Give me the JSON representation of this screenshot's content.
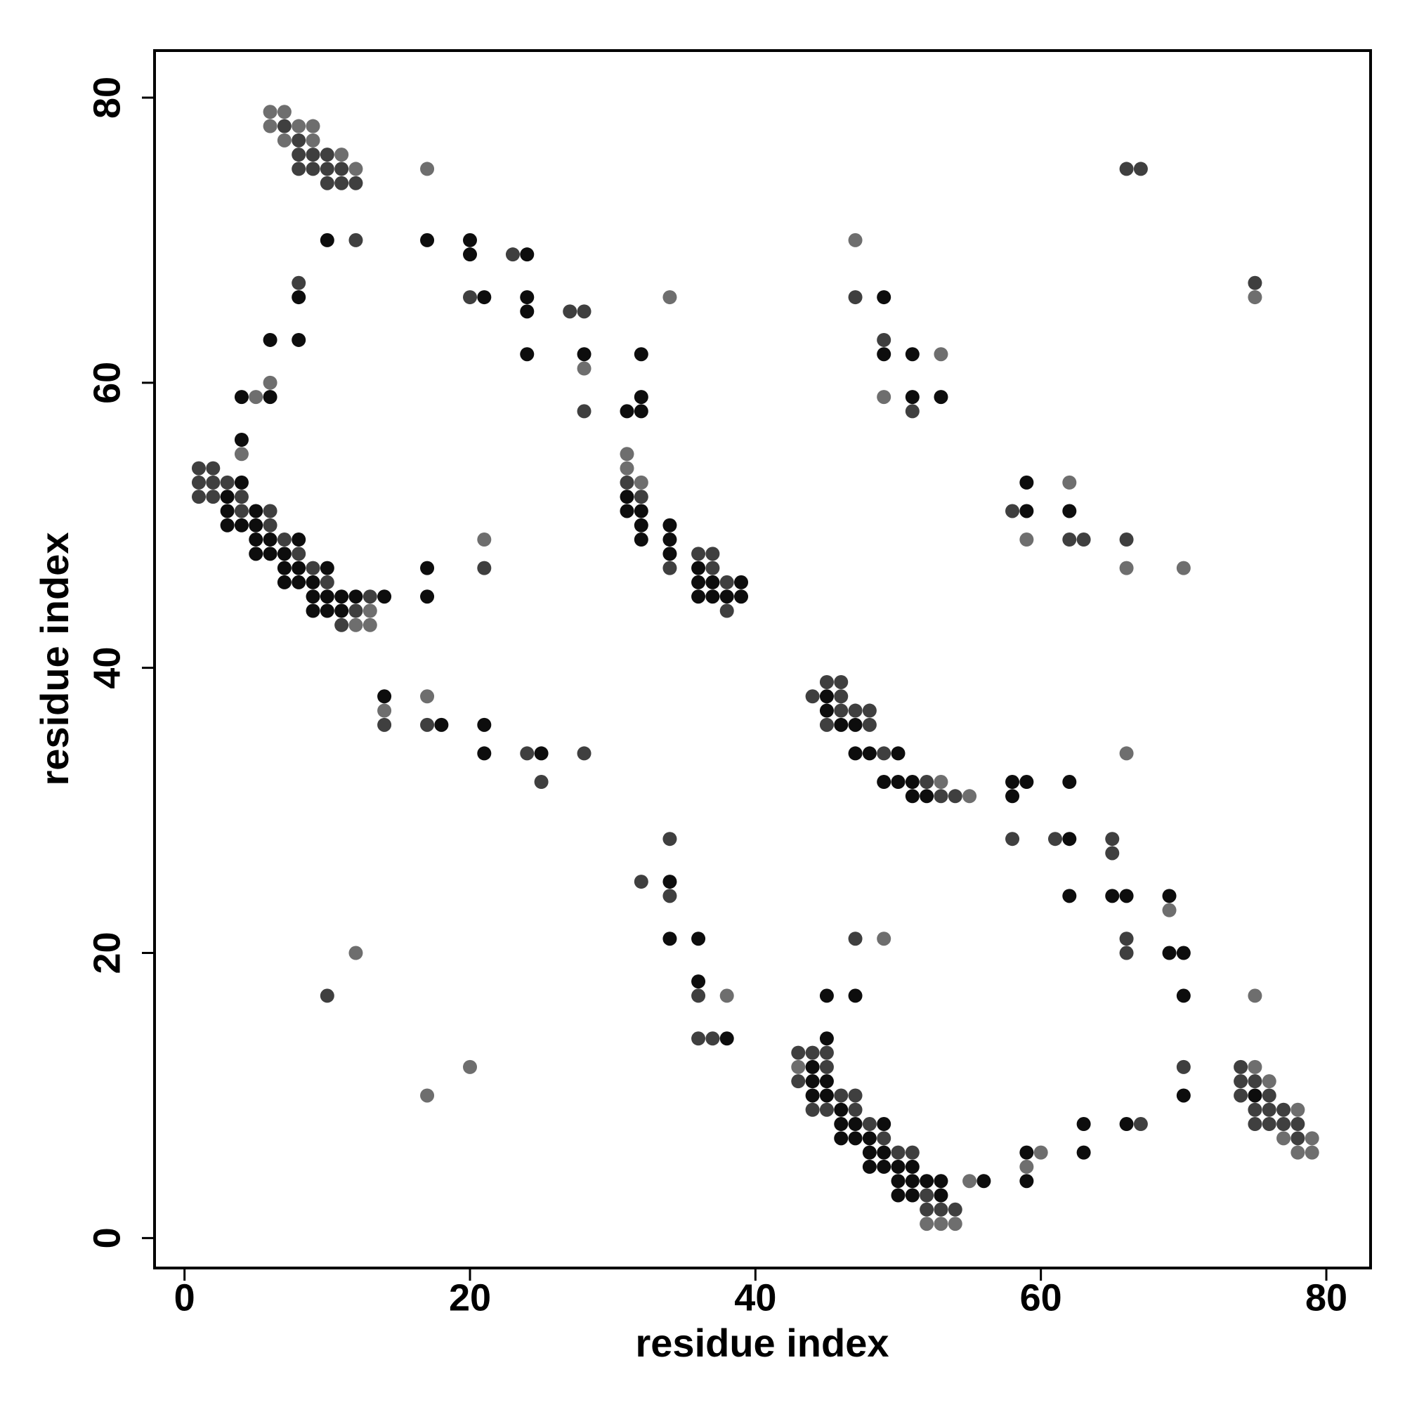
{
  "chart_data": {
    "type": "scatter",
    "x_label": "residue index",
    "y_label": "residue index",
    "xlim": [
      -2.1,
      83.1
    ],
    "ylim": [
      -2.1,
      83.3
    ],
    "xticks": [
      0,
      20,
      40,
      60,
      80
    ],
    "yticks": [
      0,
      20,
      40,
      60,
      80
    ],
    "grid": false,
    "series": [
      {
        "color": "#0d0d0d",
        "x": [
          10,
          17,
          20,
          20,
          24,
          8,
          21,
          24,
          49,
          24,
          6,
          8,
          24,
          28,
          32,
          49,
          51,
          4,
          6,
          32,
          51,
          53,
          31,
          32,
          4,
          4,
          59,
          3,
          31,
          3,
          5,
          31,
          32,
          59,
          62,
          3,
          4,
          5,
          32,
          34,
          5,
          6,
          8,
          32,
          34,
          5,
          6,
          7,
          34,
          7,
          8,
          10,
          17,
          36,
          7,
          8,
          9,
          36,
          37,
          39,
          9,
          10,
          11,
          12,
          14,
          17,
          36,
          37,
          38,
          39,
          9,
          10,
          11,
          14,
          45,
          45,
          18,
          21,
          46,
          47,
          21,
          25,
          47,
          48,
          50,
          49,
          50,
          51,
          58,
          59,
          62,
          51,
          52,
          58,
          62,
          34,
          62,
          65,
          66,
          69,
          34,
          36,
          69,
          70,
          36,
          45,
          47,
          70,
          38,
          45,
          44,
          44,
          45,
          44,
          45,
          70,
          75,
          46,
          46,
          47,
          49,
          63,
          66,
          46,
          47,
          48,
          48,
          49,
          59,
          63,
          48,
          49,
          50,
          51,
          50,
          51,
          52,
          53,
          56,
          59,
          50,
          51,
          53
        ],
        "values": [
          70,
          70,
          70,
          69,
          69,
          66,
          66,
          66,
          66,
          65,
          63,
          63,
          62,
          62,
          62,
          62,
          62,
          59,
          59,
          59,
          59,
          59,
          58,
          58,
          56,
          53,
          53,
          52,
          52,
          51,
          51,
          51,
          51,
          51,
          51,
          50,
          50,
          50,
          50,
          50,
          49,
          49,
          49,
          49,
          49,
          48,
          48,
          48,
          48,
          47,
          47,
          47,
          47,
          47,
          46,
          46,
          46,
          46,
          46,
          46,
          45,
          45,
          45,
          45,
          45,
          45,
          45,
          45,
          45,
          45,
          44,
          44,
          44,
          38,
          38,
          37,
          36,
          36,
          36,
          36,
          34,
          34,
          34,
          34,
          34,
          32,
          32,
          32,
          32,
          32,
          32,
          31,
          31,
          31,
          28,
          25,
          24,
          24,
          24,
          24,
          21,
          21,
          20,
          20,
          18,
          17,
          17,
          17,
          14,
          14,
          12,
          11,
          11,
          10,
          10,
          10,
          10,
          9,
          8,
          8,
          8,
          8,
          8,
          7,
          7,
          7,
          6,
          6,
          6,
          6,
          5,
          5,
          5,
          5,
          4,
          4,
          4,
          4,
          4,
          4,
          3,
          3,
          3
        ]
      },
      {
        "color": "#3f3f3f",
        "x": [
          7,
          8,
          8,
          9,
          10,
          8,
          9,
          10,
          11,
          66,
          67,
          10,
          11,
          12,
          12,
          23,
          8,
          75,
          20,
          47,
          27,
          28,
          49,
          28,
          51,
          1,
          2,
          1,
          2,
          3,
          31,
          1,
          2,
          4,
          32,
          4,
          6,
          58,
          6,
          7,
          62,
          63,
          66,
          8,
          36,
          37,
          9,
          21,
          34,
          37,
          10,
          38,
          13,
          12,
          38,
          11,
          45,
          46,
          44,
          46,
          46,
          47,
          48,
          14,
          17,
          45,
          48,
          24,
          28,
          49,
          25,
          52,
          53,
          54,
          34,
          58,
          61,
          65,
          65,
          32,
          34,
          47,
          66,
          66,
          10,
          36,
          36,
          37,
          43,
          44,
          45,
          45,
          70,
          74,
          43,
          74,
          75,
          46,
          47,
          74,
          76,
          44,
          45,
          47,
          75,
          76,
          77,
          48,
          67,
          75,
          76,
          77,
          78,
          49,
          78,
          50,
          51,
          52,
          52,
          53,
          54
        ],
        "values": [
          78,
          77,
          76,
          76,
          76,
          75,
          75,
          75,
          75,
          75,
          75,
          74,
          74,
          74,
          70,
          69,
          67,
          67,
          66,
          66,
          65,
          65,
          63,
          58,
          58,
          54,
          54,
          53,
          53,
          53,
          53,
          52,
          52,
          52,
          52,
          51,
          51,
          51,
          50,
          49,
          49,
          49,
          49,
          48,
          48,
          48,
          47,
          47,
          47,
          47,
          46,
          46,
          45,
          44,
          44,
          43,
          39,
          39,
          38,
          38,
          37,
          37,
          37,
          36,
          36,
          36,
          36,
          34,
          34,
          34,
          32,
          32,
          31,
          31,
          28,
          28,
          28,
          28,
          27,
          25,
          24,
          21,
          21,
          20,
          17,
          17,
          14,
          14,
          13,
          13,
          13,
          12,
          12,
          12,
          11,
          11,
          11,
          10,
          10,
          10,
          10,
          9,
          9,
          9,
          9,
          9,
          9,
          8,
          8,
          8,
          8,
          8,
          8,
          7,
          7,
          6,
          6,
          3,
          2,
          2,
          2
        ]
      },
      {
        "color": "#6e6e6e",
        "x": [
          6,
          7,
          6,
          8,
          9,
          7,
          9,
          11,
          12,
          17,
          47,
          34,
          75,
          53,
          28,
          6,
          5,
          49,
          4,
          31,
          31,
          32,
          62,
          21,
          59,
          66,
          70,
          13,
          12,
          13,
          17,
          14,
          66,
          53,
          55,
          69,
          49,
          12,
          38,
          75,
          20,
          43,
          75,
          76,
          17,
          78,
          77,
          79,
          60,
          78,
          79,
          59,
          55,
          52,
          53,
          54
        ],
        "values": [
          79,
          79,
          78,
          78,
          78,
          77,
          77,
          76,
          75,
          75,
          70,
          66,
          66,
          62,
          61,
          60,
          59,
          59,
          55,
          55,
          54,
          53,
          53,
          49,
          49,
          47,
          47,
          44,
          43,
          43,
          38,
          37,
          34,
          32,
          31,
          23,
          21,
          20,
          17,
          17,
          12,
          12,
          12,
          11,
          10,
          9,
          7,
          7,
          6,
          6,
          6,
          5,
          4,
          1,
          1,
          1
        ]
      }
    ]
  }
}
